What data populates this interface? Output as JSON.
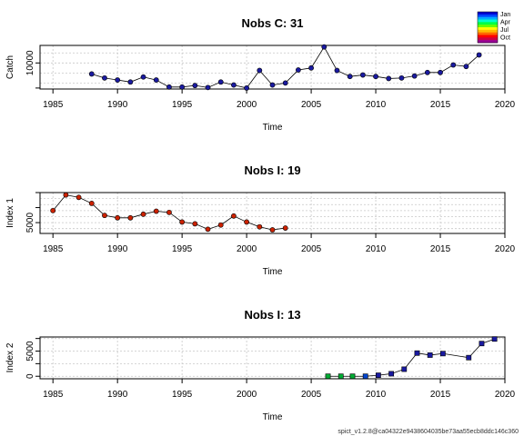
{
  "footer": "spict_v1.2.8@ca04322e9438604035be73aa55ecb8ddc146c360",
  "legend": {
    "labels": [
      "Jan",
      "Apr",
      "Jul",
      "Oct"
    ],
    "colors": [
      "#0000cc",
      "#0044ff",
      "#00aaff",
      "#00ffcc",
      "#00ff44",
      "#66ff00",
      "#ffff00",
      "#ffbb00",
      "#ff6600",
      "#ff0000",
      "#cc0044",
      "#990099"
    ]
  },
  "chart_data": [
    {
      "type": "line",
      "title": "Nobs C: 31",
      "xlabel": "Time",
      "ylabel": "Catch",
      "xlim": [
        1984,
        2020
      ],
      "ylim": [
        4800,
        13500
      ],
      "xticks": [
        1985,
        1990,
        1995,
        2000,
        2005,
        2010,
        2015,
        2020
      ],
      "yticks": [
        10000
      ],
      "grid": true,
      "point_color": "#1a1aa0",
      "series": [
        {
          "x": [
            1988,
            1989,
            1990,
            1991,
            1992,
            1993,
            1994,
            1995,
            1996,
            1997,
            1998,
            1999,
            2000,
            2001,
            2002,
            2003,
            2004,
            2005,
            2006,
            2007,
            2008,
            2009,
            2010,
            2011,
            2012,
            2013,
            2014,
            2015,
            2016,
            2017,
            2018
          ],
          "y": [
            7800,
            7000,
            6600,
            6200,
            7200,
            6600,
            5200,
            5200,
            5500,
            5100,
            6200,
            5600,
            5000,
            8500,
            5600,
            6000,
            8600,
            9000,
            13200,
            8500,
            7300,
            7600,
            7300,
            6900,
            7000,
            7400,
            8100,
            8100,
            9600,
            9300,
            11600
          ]
        }
      ]
    },
    {
      "type": "line",
      "title": "Nobs I: 19",
      "xlabel": "Time",
      "ylabel": "Index 1",
      "xlim": [
        1984,
        2020
      ],
      "ylim": [
        3200,
        10000
      ],
      "xticks": [
        1985,
        1990,
        1995,
        2000,
        2005,
        2010,
        2015,
        2020
      ],
      "yticks": [
        5000
      ],
      "grid": true,
      "point_color": "#cc2200",
      "series": [
        {
          "x": [
            1985,
            1986,
            1987,
            1988,
            1989,
            1990,
            1991,
            1992,
            1993,
            1994,
            1995,
            1996,
            1997,
            1998,
            1999,
            2000,
            2001,
            2002,
            2003
          ],
          "y": [
            7000,
            9600,
            9200,
            8200,
            6200,
            5800,
            5800,
            6400,
            6900,
            6700,
            5100,
            4800,
            3900,
            4600,
            6100,
            5100,
            4300,
            3800,
            4100
          ]
        }
      ]
    },
    {
      "type": "line",
      "title": "Nobs I: 13",
      "xlabel": "Time",
      "ylabel": "Index 2",
      "xlim": [
        1984,
        2020
      ],
      "ylim": [
        -500,
        7800
      ],
      "xticks": [
        1985,
        1990,
        1995,
        2000,
        2005,
        2010,
        2015,
        2020
      ],
      "yticks": [
        0,
        5000
      ],
      "grid": true,
      "series": [
        {
          "x": [
            2006.3,
            2007.3,
            2008.2,
            2009.2,
            2010.2,
            2011.2,
            2012.2,
            2013.2,
            2014.2,
            2015.2,
            2017.2,
            2018.2,
            2019.2
          ],
          "y": [
            0,
            0,
            0,
            0,
            200,
            500,
            1400,
            4600,
            4200,
            4500,
            3700,
            6500,
            7400
          ],
          "point_colors": [
            "#00aa33",
            "#00aa33",
            "#00aa33",
            "#0044cc",
            "#1a1aa0",
            "#1a1aa0",
            "#1a1aa0",
            "#1a1aa0",
            "#1a1aa0",
            "#1a1aa0",
            "#1a1aa0",
            "#1a1aa0",
            "#1a1aa0"
          ]
        }
      ]
    }
  ]
}
